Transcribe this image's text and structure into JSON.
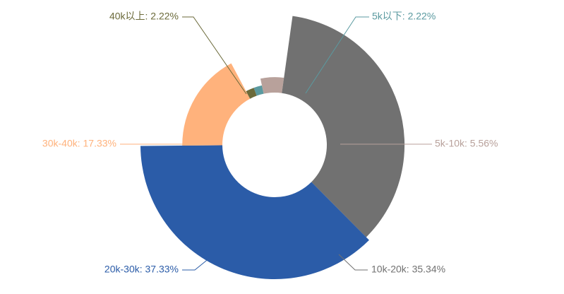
{
  "chart_data": {
    "type": "pie",
    "subtype": "rose",
    "categories": [
      "5k以下",
      "5k-10k",
      "10k-20k",
      "20k-30k",
      "30k-40k",
      "40k以上"
    ],
    "values": [
      2.22,
      5.56,
      35.34,
      37.33,
      17.33,
      2.22
    ],
    "unit": "%",
    "colors": [
      "#5b9aa0",
      "#b8a19b",
      "#717171",
      "#2b5ca8",
      "#ffb27c",
      "#6b6a3a"
    ],
    "labels": [
      "5k以下: 2.22%",
      "5k-10k: 5.56%",
      "10k-20k: 35.34%",
      "20k-30k: 37.33%",
      "30k-40k: 17.33%",
      "40k以上: 2.22%"
    ],
    "legend": "none"
  }
}
